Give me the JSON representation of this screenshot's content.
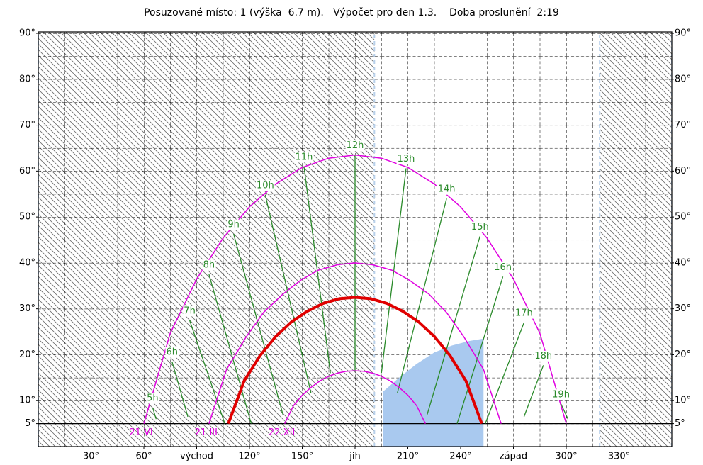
{
  "chart_data": {
    "type": "line",
    "title": "Posuzované místo: 1 (výška  6.7 m).   Výpočet pro den 1.3.    Doba proslunění  2:19",
    "xlim": [
      0,
      360
    ],
    "ylim": [
      0,
      90
    ],
    "xticks": [
      {
        "value": 30,
        "label": "30°"
      },
      {
        "value": 60,
        "label": "60°"
      },
      {
        "value": 90,
        "label": "východ"
      },
      {
        "value": 120,
        "label": "120°"
      },
      {
        "value": 150,
        "label": "150°"
      },
      {
        "value": 180,
        "label": "jih"
      },
      {
        "value": 210,
        "label": "210°"
      },
      {
        "value": 240,
        "label": "240°"
      },
      {
        "value": 270,
        "label": "západ"
      },
      {
        "value": 300,
        "label": "300°"
      },
      {
        "value": 330,
        "label": "330°"
      }
    ],
    "yticks": [
      {
        "value": 5,
        "label": "5°"
      },
      {
        "value": 10,
        "label": "10°"
      },
      {
        "value": 20,
        "label": "20°"
      },
      {
        "value": 30,
        "label": "30°"
      },
      {
        "value": 40,
        "label": "40°"
      },
      {
        "value": 50,
        "label": "50°"
      },
      {
        "value": 60,
        "label": "60°"
      },
      {
        "value": 70,
        "label": "70°"
      },
      {
        "value": 80,
        "label": "80°"
      },
      {
        "value": 90,
        "label": "90°"
      }
    ],
    "horizon": 5,
    "shaded": [
      [
        0,
        191
      ],
      [
        319,
        360
      ]
    ],
    "obstruction": {
      "color": "#a9c9ef",
      "x": [
        196,
        196,
        205,
        215,
        225,
        235,
        245,
        253,
        253
      ],
      "values": [
        0,
        12,
        15,
        18,
        20.5,
        22,
        23,
        23.5,
        0
      ]
    },
    "series": [
      {
        "name": "21.VI",
        "color": "#e000e0",
        "line_width": 1.5,
        "x": [
          60,
          75,
          90,
          105,
          120,
          135,
          150,
          165,
          180,
          195,
          210,
          225,
          240,
          255,
          270,
          285,
          300
        ],
        "values": [
          5,
          24.7,
          36.5,
          45.4,
          52.2,
          57.2,
          60.8,
          62.8,
          63.5,
          62.8,
          60.8,
          57.2,
          52.2,
          45.4,
          36.5,
          24.7,
          5
        ]
      },
      {
        "name": "21.III",
        "color": "#e000e0",
        "line_width": 1.5,
        "x": [
          97,
          107,
          118,
          128,
          139,
          149,
          159,
          170,
          180,
          190,
          201,
          211,
          222,
          232,
          242,
          253,
          263
        ],
        "values": [
          5,
          16.8,
          23.8,
          29.2,
          33.2,
          36.2,
          38.4,
          39.6,
          40,
          39.6,
          38.4,
          36.2,
          33.2,
          29.2,
          23.8,
          16.8,
          5
        ]
      },
      {
        "name": "22.XII",
        "color": "#e000e0",
        "line_width": 1.5,
        "x": [
          140,
          145,
          150,
          155,
          160,
          165,
          170,
          175,
          180,
          185,
          190,
          195,
          200,
          205,
          210,
          215,
          220
        ],
        "values": [
          5,
          8.9,
          11.2,
          12.9,
          14.3,
          15.3,
          16,
          16.4,
          16.5,
          16.4,
          16,
          15.3,
          14.3,
          12.9,
          11.2,
          8.9,
          5
        ]
      },
      {
        "color": "#e00000",
        "line_width": 4,
        "x": [
          108,
          117,
          126,
          135,
          144,
          153,
          162,
          171,
          180,
          189,
          198,
          207,
          216,
          225,
          234,
          243,
          252
        ],
        "values": [
          5,
          14.3,
          19.8,
          24,
          27.2,
          29.5,
          31.2,
          32.2,
          32.5,
          32.2,
          31.2,
          29.5,
          27.2,
          24,
          19.8,
          14.3,
          5
        ]
      }
    ],
    "hour_color": "#2a8a2a",
    "hour_lines": [
      {
        "label": "5h",
        "x": [
          65,
          67
        ],
        "values": [
          8.5,
          6
        ]
      },
      {
        "label": "6h",
        "x": [
          76,
          85
        ],
        "values": [
          18.5,
          6.5
        ]
      },
      {
        "label": "7h",
        "x": [
          86,
          106
        ],
        "values": [
          27.5,
          5
        ]
      },
      {
        "label": "8h",
        "x": [
          97,
          121
        ],
        "values": [
          37.5,
          5
        ]
      },
      {
        "label": "9h",
        "x": [
          111,
          139
        ],
        "values": [
          46.3,
          7
        ]
      },
      {
        "label": "10h",
        "x": [
          129,
          155
        ],
        "values": [
          54.8,
          11.6
        ]
      },
      {
        "label": "11h",
        "x": [
          151,
          166
        ],
        "values": [
          61,
          16
        ]
      },
      {
        "label": "12h",
        "x": [
          180,
          180
        ],
        "values": [
          63.5,
          16.5
        ]
      },
      {
        "label": "13h",
        "x": [
          209,
          195
        ],
        "values": [
          60.6,
          16
        ]
      },
      {
        "label": "14h",
        "x": [
          232,
          204
        ],
        "values": [
          54,
          11.6
        ]
      },
      {
        "label": "15h",
        "x": [
          251,
          221
        ],
        "values": [
          45.8,
          7
        ]
      },
      {
        "label": "16h",
        "x": [
          264,
          238
        ],
        "values": [
          37,
          5
        ]
      },
      {
        "label": "17h",
        "x": [
          276,
          254
        ],
        "values": [
          27,
          5
        ]
      },
      {
        "label": "18h",
        "x": [
          287,
          276
        ],
        "values": [
          17.7,
          6.5
        ]
      },
      {
        "label": "19h",
        "x": [
          297,
          301
        ],
        "values": [
          9.3,
          6
        ]
      }
    ]
  }
}
